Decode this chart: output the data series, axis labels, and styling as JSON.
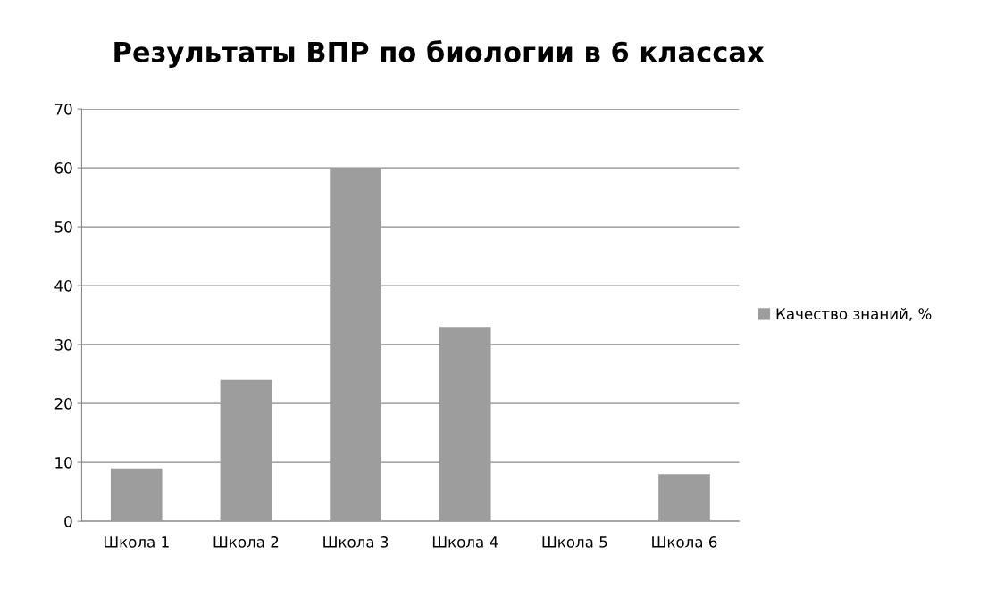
{
  "chart_data": {
    "type": "bar",
    "title": "Результаты ВПР по биологии в 6 классах",
    "categories": [
      "Школа 1",
      "Школа 2",
      "Школа 3",
      "Школа 4",
      "Школа 5",
      "Школа 6"
    ],
    "series": [
      {
        "name": "Качество знаний, %",
        "color": "#9d9d9d",
        "values": [
          9,
          24,
          60,
          33,
          null,
          8
        ]
      }
    ],
    "ylim": [
      0,
      70
    ],
    "yticks": [
      0,
      10,
      20,
      30,
      40,
      50,
      60,
      70
    ],
    "grid": "y",
    "legend": "right"
  }
}
